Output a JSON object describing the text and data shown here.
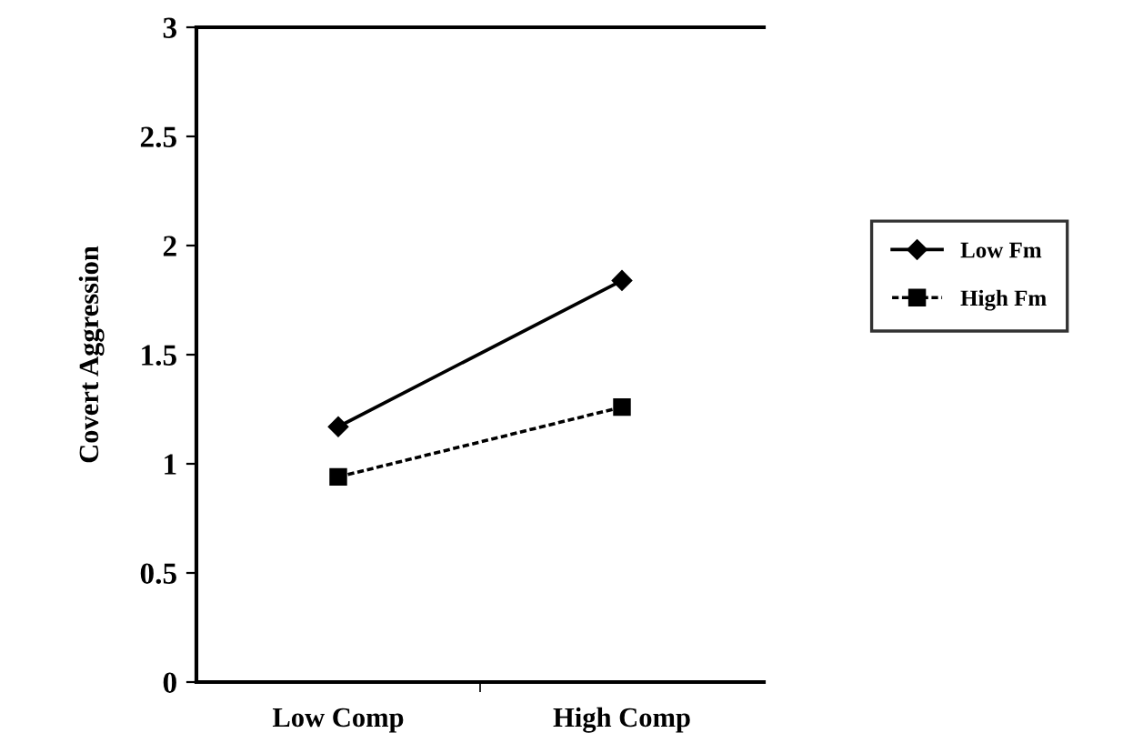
{
  "chart_data": {
    "type": "line",
    "ylabel": "Covert Aggression",
    "categories": [
      "Low Comp",
      "High Comp"
    ],
    "series": [
      {
        "name": "Low Fm",
        "color": "#000000",
        "values": [
          1.17,
          1.84
        ],
        "marker": "diamond",
        "line_style": "solid"
      },
      {
        "name": "High Fm",
        "color": "#000000",
        "values": [
          0.94,
          1.26
        ],
        "marker": "square",
        "line_style": "dashed"
      }
    ],
    "ylim": [
      0,
      3
    ],
    "yticks": [
      0,
      0.5,
      1,
      1.5,
      2,
      2.5,
      3
    ],
    "grid": false,
    "legend": "right"
  }
}
